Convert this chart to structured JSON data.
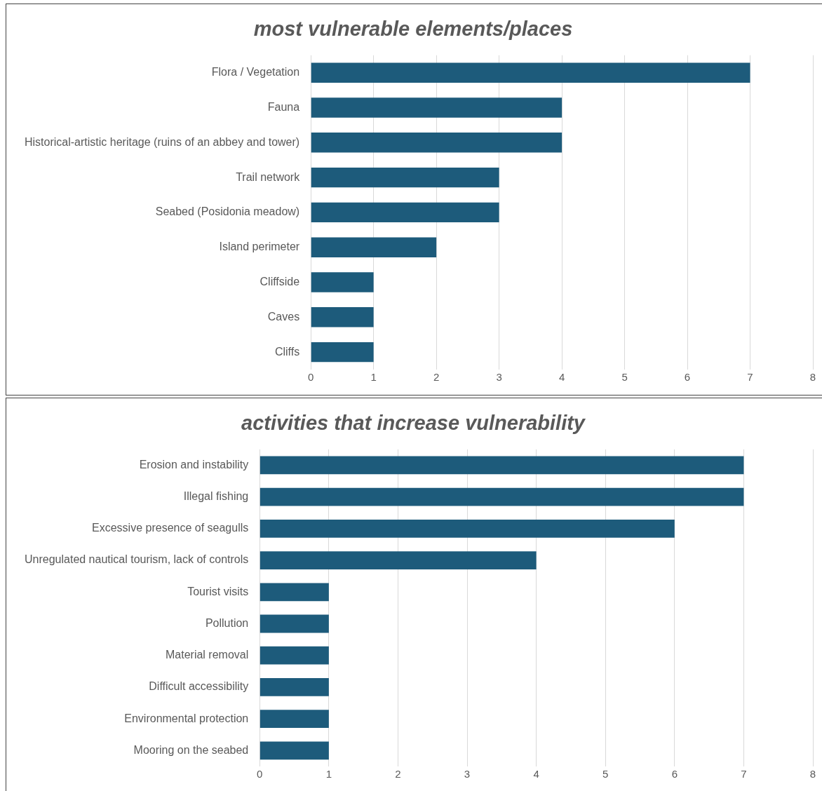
{
  "chart_data": [
    {
      "type": "bar",
      "orientation": "horizontal",
      "title": "most vulnerable elements/places",
      "categories": [
        "Flora / Vegetation",
        "Fauna",
        "Historical-artistic heritage (ruins of an abbey and tower)",
        "Trail network",
        "Seabed (Posidonia meadow)",
        "Island perimeter",
        "Cliffside",
        "Caves",
        "Cliffs"
      ],
      "values": [
        7,
        4,
        4,
        3,
        3,
        2,
        1,
        1,
        1
      ],
      "color": "#1d5b7b",
      "xlim": [
        0,
        8
      ],
      "xticks": [
        0,
        1,
        2,
        3,
        4,
        5,
        6,
        7,
        8
      ],
      "grid": "x",
      "legend": false
    },
    {
      "type": "bar",
      "orientation": "horizontal",
      "title": "activities that increase vulnerability",
      "categories": [
        "Erosion and instability",
        "Illegal fishing",
        "Excessive presence of seagulls",
        "Unregulated nautical tourism, lack of controls",
        "Tourist visits",
        "Pollution",
        "Material removal",
        "Difficult accessibility",
        "Environmental protection",
        "Mooring on the seabed"
      ],
      "values": [
        7,
        7,
        6,
        4,
        1,
        1,
        1,
        1,
        1,
        1
      ],
      "color": "#1d5b7b",
      "xlim": [
        0,
        8
      ],
      "xticks": [
        0,
        1,
        2,
        3,
        4,
        5,
        6,
        7,
        8
      ],
      "grid": "x",
      "legend": false
    }
  ]
}
